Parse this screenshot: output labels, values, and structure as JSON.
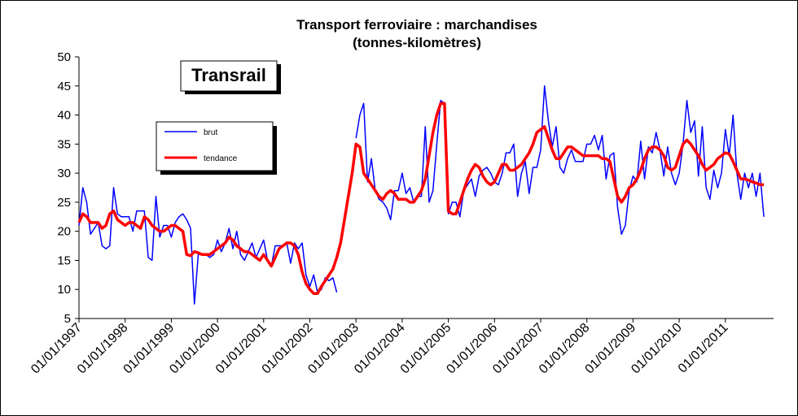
{
  "chart_data": {
    "type": "line",
    "title": "Transport ferroviaire : marchandises",
    "subtitle": "(tonnes-kilomètres)",
    "annotation": "Transrail",
    "ylim": [
      5,
      50
    ],
    "yticks": [
      5,
      10,
      15,
      20,
      25,
      30,
      35,
      40,
      45,
      50
    ],
    "grid": false,
    "categories": [
      "01/01/1997",
      null,
      null,
      null,
      null,
      null,
      null,
      null,
      null,
      null,
      null,
      null,
      "01/01/1998",
      null,
      null,
      null,
      null,
      null,
      null,
      null,
      null,
      null,
      null,
      null,
      "01/01/1999",
      null,
      null,
      null,
      null,
      null,
      null,
      null,
      null,
      null,
      null,
      null,
      "01/01/2000",
      null,
      null,
      null,
      null,
      null,
      null,
      null,
      null,
      null,
      null,
      null,
      "01/01/2001",
      null,
      null,
      null,
      null,
      null,
      null,
      null,
      null,
      null,
      null,
      null,
      "01/01/2002",
      null,
      null,
      null,
      null,
      null,
      null,
      null,
      null,
      null,
      null,
      null,
      "01/01/2003",
      null,
      null,
      null,
      null,
      null,
      null,
      null,
      null,
      null,
      null,
      null,
      "01/01/2004",
      null,
      null,
      null,
      null,
      null,
      null,
      null,
      null,
      null,
      null,
      null,
      "01/01/2005",
      null,
      null,
      null,
      null,
      null,
      null,
      null,
      null,
      null,
      null,
      null,
      "01/01/2006",
      null,
      null,
      null,
      null,
      null,
      null,
      null,
      null,
      null,
      null,
      null,
      "01/01/2007",
      null,
      null,
      null,
      null,
      null,
      null,
      null,
      null,
      null,
      null,
      null,
      "01/01/2008",
      null,
      null,
      null,
      null,
      null,
      null,
      null,
      null,
      null,
      null,
      null,
      "01/01/2009",
      null,
      null,
      null,
      null,
      null,
      null,
      null,
      null,
      null,
      null,
      null,
      "01/01/2010",
      null,
      null,
      null,
      null,
      null,
      null,
      null,
      null,
      null,
      null,
      null,
      "01/01/2011",
      null,
      null,
      null,
      null,
      null,
      null,
      null,
      null,
      null,
      null
    ],
    "series": [
      {
        "name": "brut",
        "color": "#0000ff",
        "values": [
          21,
          27.5,
          25,
          19.5,
          20.5,
          21.5,
          17.5,
          17,
          17.5,
          27.5,
          23,
          22.5,
          22.5,
          22.5,
          20,
          23.5,
          23.5,
          23.5,
          15.5,
          15,
          26,
          19,
          21,
          21,
          19,
          21.5,
          22.5,
          23,
          22,
          20.5,
          7.5,
          16,
          16,
          16,
          15.5,
          16,
          18.5,
          16.5,
          18,
          20.5,
          17,
          20,
          16,
          15,
          16.5,
          18,
          15.5,
          17,
          18.5,
          15,
          14,
          17.5,
          17.5,
          17.5,
          18,
          14.5,
          18,
          17,
          18,
          12.5,
          10.5,
          12.5,
          9.5,
          10,
          12,
          11.5,
          12,
          9.5,
          null,
          null,
          null,
          null,
          36,
          40,
          42,
          28.5,
          32.5,
          27,
          25.5,
          25,
          24,
          22,
          27,
          27,
          30,
          26.5,
          27.5,
          25,
          26,
          26,
          38,
          25,
          27,
          35,
          42.5,
          42,
          23,
          25,
          25,
          22.5,
          27,
          28,
          29,
          26,
          29.5,
          30.5,
          31,
          30,
          28.5,
          28,
          30,
          33.5,
          33.5,
          35,
          26,
          30,
          32,
          26.5,
          31,
          31,
          34,
          45,
          39,
          34.5,
          38,
          31,
          30,
          32.5,
          34,
          32,
          32,
          32,
          35,
          35,
          36.5,
          34,
          36.5,
          29,
          33,
          33.5,
          24,
          19.5,
          21,
          27,
          29.5,
          28.5,
          35.5,
          29,
          34.5,
          33.5,
          37,
          34,
          29.5,
          34.5,
          30,
          28,
          30,
          35,
          42.5,
          37,
          39,
          29.5,
          38,
          27.5,
          25.5,
          30.5,
          27.5,
          30,
          37.5,
          33,
          40,
          30,
          25.5,
          30,
          27.5,
          30,
          26,
          30,
          22.5
        ]
      },
      {
        "name": "tendance",
        "color": "#ff0000",
        "values": [
          21.5,
          23,
          22.5,
          21.5,
          21.5,
          21.5,
          20.5,
          21,
          23,
          23.5,
          22,
          21.5,
          21,
          21.5,
          21.5,
          21,
          20.5,
          22.5,
          22,
          21,
          20.5,
          20,
          20,
          20.5,
          21,
          21,
          20.5,
          20,
          16,
          15.8,
          16.5,
          16.3,
          16,
          16,
          16,
          16.5,
          17,
          17.5,
          18,
          19,
          18.5,
          17.5,
          17,
          16.5,
          16.5,
          16,
          15.5,
          15,
          16,
          15,
          14,
          15.5,
          17,
          17.5,
          18,
          18,
          17.5,
          16,
          13,
          11,
          10,
          9.3,
          9.3,
          10.5,
          11.5,
          12.5,
          13.5,
          15.5,
          18,
          22,
          26,
          30,
          35,
          34.5,
          30,
          29,
          28,
          27,
          26,
          25.5,
          26.5,
          27,
          26.5,
          25.5,
          25.5,
          25.5,
          25,
          25,
          26,
          27,
          29,
          33,
          37,
          40,
          42,
          42,
          23.5,
          23,
          23,
          25,
          27,
          29,
          30.5,
          31.5,
          31,
          29.5,
          28.5,
          28,
          28.5,
          30,
          31.5,
          31.5,
          30.5,
          30.5,
          31,
          31.5,
          32.5,
          33.5,
          35,
          37,
          37.5,
          38,
          36,
          34,
          32.5,
          32.5,
          33.5,
          34.5,
          34.5,
          34,
          33.5,
          33,
          33,
          33,
          33,
          33,
          32.5,
          32.5,
          32,
          29,
          26,
          25,
          26,
          27.5,
          28,
          29,
          30.5,
          32.5,
          34,
          34.5,
          34.5,
          34,
          33,
          31,
          30.5,
          31,
          33,
          35,
          35.7,
          35,
          34,
          33,
          31.5,
          30.5,
          31,
          31.5,
          32.5,
          33,
          33.5,
          33.3,
          32,
          30.5,
          29,
          29,
          28.8,
          28.5,
          28.3,
          28,
          28
        ]
      }
    ]
  }
}
